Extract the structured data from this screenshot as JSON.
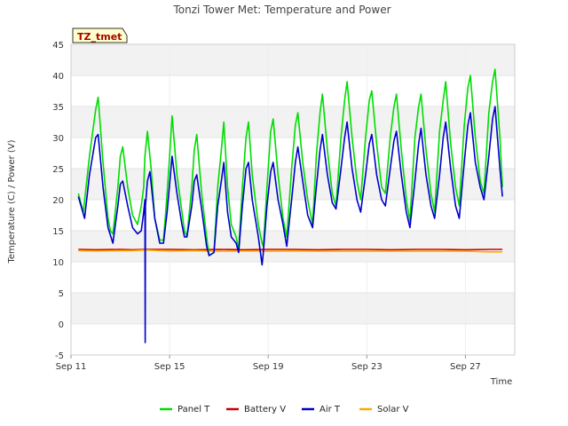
{
  "chart_data": {
    "type": "line",
    "title": "Tonzi Tower Met: Temperature and Power",
    "site_tag": "TZ_tmet",
    "xlabel": "Time",
    "ylabel": "Temperature (C) / Power (V)",
    "xlim": [
      0,
      18
    ],
    "ylim": [
      -5,
      45
    ],
    "y_ticks": [
      -5,
      0,
      5,
      10,
      15,
      20,
      25,
      30,
      35,
      40,
      45
    ],
    "x_ticks": [
      {
        "day": 0,
        "label": "Sep 11"
      },
      {
        "day": 4,
        "label": "Sep 15"
      },
      {
        "day": 8,
        "label": "Sep 19"
      },
      {
        "day": 12,
        "label": "Sep 23"
      },
      {
        "day": 16,
        "label": "Sep 27"
      }
    ],
    "plot_background_bands": true,
    "legend_position": "bottom",
    "x_unit": "days since Sep 11 00:00",
    "series": [
      {
        "name": "Panel T",
        "color": "#00dd00",
        "points": [
          [
            0.3,
            21
          ],
          [
            0.5,
            18
          ],
          [
            0.75,
            27
          ],
          [
            1.0,
            34.5
          ],
          [
            1.1,
            36.5
          ],
          [
            1.3,
            26
          ],
          [
            1.5,
            17
          ],
          [
            1.6,
            15
          ],
          [
            1.7,
            14.5
          ],
          [
            1.9,
            22
          ],
          [
            2.0,
            27
          ],
          [
            2.1,
            28.5
          ],
          [
            2.3,
            22
          ],
          [
            2.5,
            17.5
          ],
          [
            2.7,
            16
          ],
          [
            2.85,
            19
          ],
          [
            2.95,
            22
          ],
          [
            3.0,
            27
          ],
          [
            3.1,
            31
          ],
          [
            3.25,
            25
          ],
          [
            3.4,
            17
          ],
          [
            3.6,
            13.5
          ],
          [
            3.75,
            13.5
          ],
          [
            3.9,
            21
          ],
          [
            4.0,
            27
          ],
          [
            4.1,
            33.5
          ],
          [
            4.3,
            24
          ],
          [
            4.5,
            18
          ],
          [
            4.6,
            15
          ],
          [
            4.7,
            14
          ],
          [
            4.9,
            22
          ],
          [
            5.0,
            28
          ],
          [
            5.1,
            30.5
          ],
          [
            5.3,
            21
          ],
          [
            5.5,
            14
          ],
          [
            5.6,
            11
          ],
          [
            5.8,
            11.5
          ],
          [
            5.95,
            22
          ],
          [
            6.1,
            28
          ],
          [
            6.2,
            32.5
          ],
          [
            6.35,
            22
          ],
          [
            6.5,
            16
          ],
          [
            6.7,
            14
          ],
          [
            6.8,
            12
          ],
          [
            6.95,
            22
          ],
          [
            7.1,
            30
          ],
          [
            7.2,
            32.5
          ],
          [
            7.35,
            24
          ],
          [
            7.6,
            16
          ],
          [
            7.75,
            13
          ],
          [
            7.8,
            12.5
          ],
          [
            7.95,
            22
          ],
          [
            8.1,
            31
          ],
          [
            8.2,
            33
          ],
          [
            8.4,
            24
          ],
          [
            8.6,
            17
          ],
          [
            8.75,
            14
          ],
          [
            8.95,
            25
          ],
          [
            9.1,
            32
          ],
          [
            9.2,
            34
          ],
          [
            9.4,
            26
          ],
          [
            9.6,
            20
          ],
          [
            9.75,
            17
          ],
          [
            9.8,
            16
          ],
          [
            9.95,
            27
          ],
          [
            10.1,
            34
          ],
          [
            10.2,
            37
          ],
          [
            10.4,
            28
          ],
          [
            10.6,
            21
          ],
          [
            10.75,
            19
          ],
          [
            10.95,
            30
          ],
          [
            11.1,
            36
          ],
          [
            11.2,
            39
          ],
          [
            11.4,
            30
          ],
          [
            11.6,
            23
          ],
          [
            11.75,
            20
          ],
          [
            11.95,
            30
          ],
          [
            12.1,
            36
          ],
          [
            12.2,
            37.5
          ],
          [
            12.4,
            29
          ],
          [
            12.6,
            22
          ],
          [
            12.75,
            21
          ],
          [
            12.95,
            30
          ],
          [
            13.1,
            35
          ],
          [
            13.2,
            37
          ],
          [
            13.4,
            28
          ],
          [
            13.6,
            20
          ],
          [
            13.75,
            16.5
          ],
          [
            13.95,
            30
          ],
          [
            14.1,
            35
          ],
          [
            14.2,
            37
          ],
          [
            14.4,
            28
          ],
          [
            14.6,
            21
          ],
          [
            14.75,
            18
          ],
          [
            14.95,
            31
          ],
          [
            15.1,
            36
          ],
          [
            15.2,
            39
          ],
          [
            15.4,
            29
          ],
          [
            15.6,
            22
          ],
          [
            15.75,
            19
          ],
          [
            15.95,
            32
          ],
          [
            16.1,
            38
          ],
          [
            16.2,
            40
          ],
          [
            16.4,
            30
          ],
          [
            16.6,
            23
          ],
          [
            16.75,
            21
          ],
          [
            16.95,
            34
          ],
          [
            17.1,
            39
          ],
          [
            17.2,
            41
          ],
          [
            17.4,
            30
          ],
          [
            17.5,
            22
          ]
        ]
      },
      {
        "name": "Battery V",
        "color": "#cc0000",
        "points": [
          [
            0.3,
            12.0
          ],
          [
            1.0,
            11.95
          ],
          [
            2.0,
            12.0
          ],
          [
            2.5,
            11.95
          ],
          [
            3.0,
            12.0
          ],
          [
            4.0,
            12.0
          ],
          [
            5.0,
            11.95
          ],
          [
            6.0,
            12.0
          ],
          [
            7.0,
            11.95
          ],
          [
            8.0,
            12.0
          ],
          [
            9.0,
            12.0
          ],
          [
            10.0,
            11.95
          ],
          [
            11.0,
            12.0
          ],
          [
            12.0,
            12.0
          ],
          [
            13.0,
            11.95
          ],
          [
            14.0,
            12.0
          ],
          [
            15.0,
            12.0
          ],
          [
            16.0,
            11.95
          ],
          [
            17.0,
            12.0
          ],
          [
            17.5,
            12.0
          ]
        ]
      },
      {
        "name": "Air T",
        "color": "#0000cc",
        "points": [
          [
            0.3,
            20.5
          ],
          [
            0.55,
            17
          ],
          [
            0.75,
            24
          ],
          [
            1.0,
            30
          ],
          [
            1.1,
            30.5
          ],
          [
            1.3,
            22
          ],
          [
            1.5,
            15.5
          ],
          [
            1.7,
            13
          ],
          [
            1.9,
            19
          ],
          [
            2.0,
            22.5
          ],
          [
            2.1,
            23
          ],
          [
            2.3,
            19
          ],
          [
            2.5,
            15.5
          ],
          [
            2.7,
            14.5
          ],
          [
            2.85,
            15
          ],
          [
            2.95,
            18
          ],
          [
            3.0,
            20
          ],
          [
            3.01,
            -3
          ],
          [
            3.02,
            19
          ],
          [
            3.1,
            23
          ],
          [
            3.2,
            24.5
          ],
          [
            3.4,
            17
          ],
          [
            3.6,
            13
          ],
          [
            3.75,
            13
          ],
          [
            3.9,
            18
          ],
          [
            4.0,
            22.5
          ],
          [
            4.1,
            27
          ],
          [
            4.3,
            21
          ],
          [
            4.5,
            16
          ],
          [
            4.6,
            14
          ],
          [
            4.7,
            14
          ],
          [
            4.9,
            19
          ],
          [
            5.0,
            23
          ],
          [
            5.1,
            24
          ],
          [
            5.3,
            18.5
          ],
          [
            5.5,
            12.5
          ],
          [
            5.6,
            11
          ],
          [
            5.8,
            11.5
          ],
          [
            5.95,
            19
          ],
          [
            6.1,
            23
          ],
          [
            6.2,
            26
          ],
          [
            6.35,
            18
          ],
          [
            6.5,
            14
          ],
          [
            6.7,
            13
          ],
          [
            6.8,
            11.5
          ],
          [
            6.95,
            19
          ],
          [
            7.1,
            25
          ],
          [
            7.2,
            26
          ],
          [
            7.35,
            20
          ],
          [
            7.6,
            14
          ],
          [
            7.75,
            9.5
          ],
          [
            7.8,
            11.5
          ],
          [
            7.95,
            19
          ],
          [
            8.1,
            24.5
          ],
          [
            8.2,
            26
          ],
          [
            8.4,
            20
          ],
          [
            8.6,
            16
          ],
          [
            8.75,
            12.5
          ],
          [
            8.95,
            20
          ],
          [
            9.1,
            26
          ],
          [
            9.2,
            28.5
          ],
          [
            9.4,
            23
          ],
          [
            9.6,
            17.5
          ],
          [
            9.75,
            16
          ],
          [
            9.8,
            15.5
          ],
          [
            9.95,
            22
          ],
          [
            10.1,
            28
          ],
          [
            10.2,
            30.5
          ],
          [
            10.4,
            24
          ],
          [
            10.6,
            19.5
          ],
          [
            10.75,
            18.5
          ],
          [
            10.95,
            25
          ],
          [
            11.1,
            30
          ],
          [
            11.2,
            32.5
          ],
          [
            11.4,
            25
          ],
          [
            11.6,
            20
          ],
          [
            11.75,
            18
          ],
          [
            11.95,
            24
          ],
          [
            12.1,
            29
          ],
          [
            12.2,
            30.5
          ],
          [
            12.4,
            24
          ],
          [
            12.6,
            20
          ],
          [
            12.75,
            19
          ],
          [
            12.95,
            25
          ],
          [
            13.1,
            29.5
          ],
          [
            13.2,
            31
          ],
          [
            13.4,
            24
          ],
          [
            13.6,
            18
          ],
          [
            13.75,
            15.5
          ],
          [
            13.95,
            23
          ],
          [
            14.1,
            29
          ],
          [
            14.2,
            31.5
          ],
          [
            14.4,
            24
          ],
          [
            14.6,
            19
          ],
          [
            14.75,
            17
          ],
          [
            14.95,
            24
          ],
          [
            15.1,
            30
          ],
          [
            15.2,
            32.5
          ],
          [
            15.4,
            25
          ],
          [
            15.6,
            19
          ],
          [
            15.75,
            17
          ],
          [
            15.95,
            26
          ],
          [
            16.1,
            32
          ],
          [
            16.2,
            34
          ],
          [
            16.4,
            26
          ],
          [
            16.6,
            22
          ],
          [
            16.75,
            20
          ],
          [
            16.95,
            27
          ],
          [
            17.1,
            33
          ],
          [
            17.2,
            35
          ],
          [
            17.4,
            25
          ],
          [
            17.5,
            20.5
          ]
        ]
      },
      {
        "name": "Solar V",
        "color": "#ffaa00",
        "points": [
          [
            0.3,
            11.8
          ],
          [
            1.0,
            11.75
          ],
          [
            2.0,
            11.8
          ],
          [
            2.5,
            11.8
          ],
          [
            3.0,
            11.9
          ],
          [
            4.0,
            11.75
          ],
          [
            5.0,
            11.8
          ],
          [
            6.0,
            11.7
          ],
          [
            7.0,
            11.75
          ],
          [
            8.0,
            11.7
          ],
          [
            9.0,
            11.75
          ],
          [
            10.0,
            11.7
          ],
          [
            11.0,
            11.7
          ],
          [
            12.0,
            11.7
          ],
          [
            13.0,
            11.7
          ],
          [
            14.0,
            11.7
          ],
          [
            15.0,
            11.7
          ],
          [
            16.0,
            11.7
          ],
          [
            17.0,
            11.6
          ],
          [
            17.5,
            11.6
          ]
        ]
      }
    ]
  }
}
